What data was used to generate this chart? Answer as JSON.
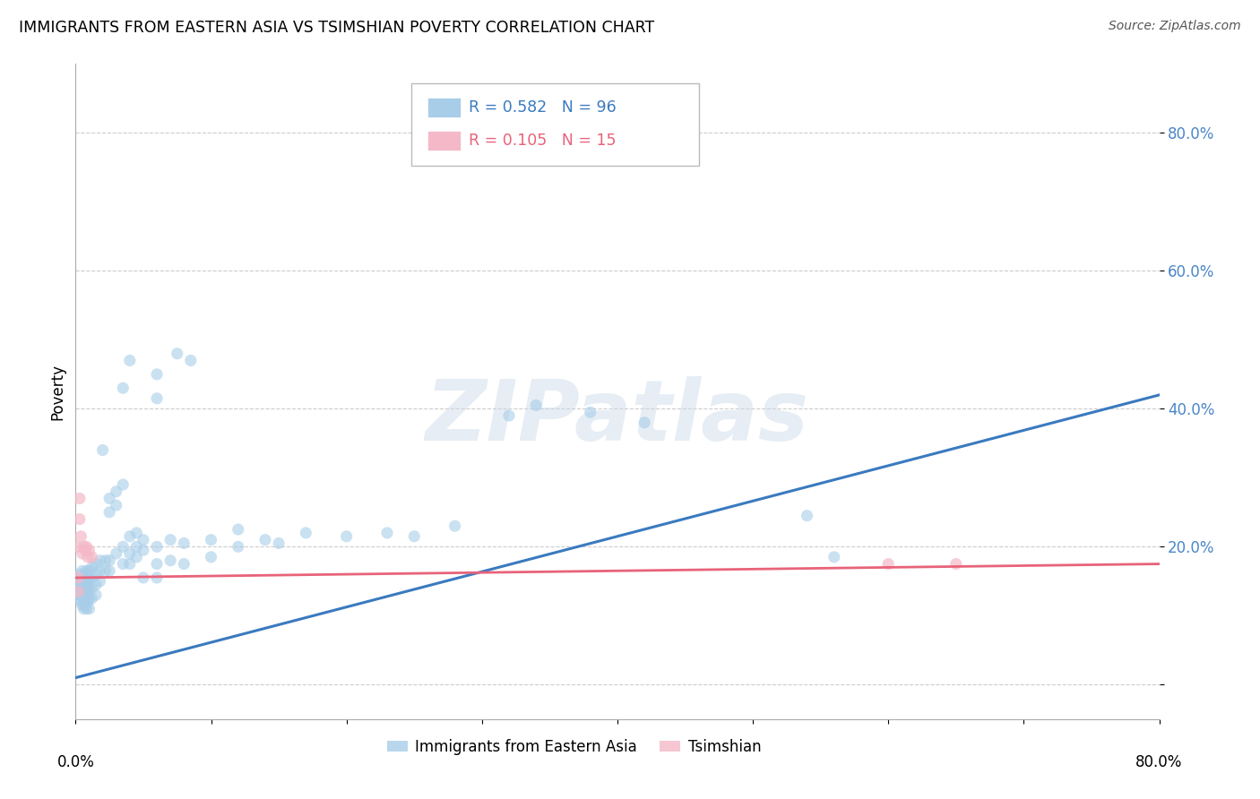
{
  "title": "IMMIGRANTS FROM EASTERN ASIA VS TSIMSHIAN POVERTY CORRELATION CHART",
  "source": "Source: ZipAtlas.com",
  "ylabel": "Poverty",
  "blue_color": "#a8cde8",
  "pink_color": "#f4b8c8",
  "blue_line_color": "#3a7abf",
  "pink_line_color": "#e8637a",
  "watermark": "ZIPatlas",
  "xlim": [
    0.0,
    0.8
  ],
  "ylim": [
    -0.05,
    0.9
  ],
  "blue_scatter": [
    [
      0.001,
      0.155
    ],
    [
      0.002,
      0.145
    ],
    [
      0.002,
      0.135
    ],
    [
      0.003,
      0.16
    ],
    [
      0.003,
      0.14
    ],
    [
      0.003,
      0.125
    ],
    [
      0.004,
      0.155
    ],
    [
      0.004,
      0.145
    ],
    [
      0.004,
      0.13
    ],
    [
      0.004,
      0.12
    ],
    [
      0.005,
      0.165
    ],
    [
      0.005,
      0.15
    ],
    [
      0.005,
      0.14
    ],
    [
      0.005,
      0.13
    ],
    [
      0.005,
      0.115
    ],
    [
      0.006,
      0.155
    ],
    [
      0.006,
      0.145
    ],
    [
      0.006,
      0.135
    ],
    [
      0.006,
      0.125
    ],
    [
      0.006,
      0.11
    ],
    [
      0.007,
      0.16
    ],
    [
      0.007,
      0.15
    ],
    [
      0.007,
      0.14
    ],
    [
      0.007,
      0.13
    ],
    [
      0.007,
      0.115
    ],
    [
      0.008,
      0.165
    ],
    [
      0.008,
      0.155
    ],
    [
      0.008,
      0.14
    ],
    [
      0.008,
      0.125
    ],
    [
      0.008,
      0.11
    ],
    [
      0.009,
      0.16
    ],
    [
      0.009,
      0.15
    ],
    [
      0.009,
      0.135
    ],
    [
      0.009,
      0.12
    ],
    [
      0.01,
      0.165
    ],
    [
      0.01,
      0.155
    ],
    [
      0.01,
      0.14
    ],
    [
      0.01,
      0.125
    ],
    [
      0.01,
      0.11
    ],
    [
      0.012,
      0.17
    ],
    [
      0.012,
      0.155
    ],
    [
      0.012,
      0.14
    ],
    [
      0.012,
      0.125
    ],
    [
      0.015,
      0.175
    ],
    [
      0.015,
      0.16
    ],
    [
      0.015,
      0.145
    ],
    [
      0.015,
      0.13
    ],
    [
      0.018,
      0.18
    ],
    [
      0.018,
      0.165
    ],
    [
      0.018,
      0.15
    ],
    [
      0.02,
      0.34
    ],
    [
      0.022,
      0.18
    ],
    [
      0.022,
      0.165
    ],
    [
      0.025,
      0.27
    ],
    [
      0.025,
      0.25
    ],
    [
      0.025,
      0.18
    ],
    [
      0.025,
      0.165
    ],
    [
      0.03,
      0.28
    ],
    [
      0.03,
      0.26
    ],
    [
      0.03,
      0.19
    ],
    [
      0.035,
      0.29
    ],
    [
      0.035,
      0.2
    ],
    [
      0.035,
      0.175
    ],
    [
      0.04,
      0.215
    ],
    [
      0.04,
      0.19
    ],
    [
      0.04,
      0.175
    ],
    [
      0.045,
      0.22
    ],
    [
      0.045,
      0.2
    ],
    [
      0.045,
      0.185
    ],
    [
      0.05,
      0.21
    ],
    [
      0.05,
      0.195
    ],
    [
      0.05,
      0.155
    ],
    [
      0.06,
      0.2
    ],
    [
      0.06,
      0.175
    ],
    [
      0.06,
      0.155
    ],
    [
      0.07,
      0.21
    ],
    [
      0.07,
      0.18
    ],
    [
      0.08,
      0.205
    ],
    [
      0.08,
      0.175
    ],
    [
      0.1,
      0.21
    ],
    [
      0.1,
      0.185
    ],
    [
      0.12,
      0.225
    ],
    [
      0.12,
      0.2
    ],
    [
      0.14,
      0.21
    ],
    [
      0.15,
      0.205
    ],
    [
      0.17,
      0.22
    ],
    [
      0.2,
      0.215
    ],
    [
      0.23,
      0.22
    ],
    [
      0.25,
      0.215
    ],
    [
      0.28,
      0.23
    ],
    [
      0.035,
      0.43
    ],
    [
      0.04,
      0.47
    ],
    [
      0.06,
      0.415
    ],
    [
      0.06,
      0.45
    ],
    [
      0.075,
      0.48
    ],
    [
      0.085,
      0.47
    ],
    [
      0.32,
      0.39
    ],
    [
      0.34,
      0.405
    ],
    [
      0.38,
      0.395
    ],
    [
      0.42,
      0.38
    ],
    [
      0.54,
      0.245
    ],
    [
      0.56,
      0.185
    ]
  ],
  "pink_scatter": [
    [
      0.001,
      0.2
    ],
    [
      0.002,
      0.155
    ],
    [
      0.002,
      0.135
    ],
    [
      0.003,
      0.27
    ],
    [
      0.003,
      0.24
    ],
    [
      0.004,
      0.215
    ],
    [
      0.005,
      0.19
    ],
    [
      0.006,
      0.2
    ],
    [
      0.007,
      0.195
    ],
    [
      0.008,
      0.2
    ],
    [
      0.009,
      0.185
    ],
    [
      0.01,
      0.195
    ],
    [
      0.012,
      0.185
    ],
    [
      0.6,
      0.175
    ],
    [
      0.65,
      0.175
    ]
  ],
  "blue_regline": [
    0.0,
    0.8,
    0.01,
    0.42
  ],
  "pink_regline": [
    0.0,
    0.8,
    0.155,
    0.175
  ],
  "yticks": [
    0.0,
    0.2,
    0.4,
    0.6,
    0.8
  ],
  "ytick_labels": [
    "",
    "20.0%",
    "40.0%",
    "60.0%",
    "80.0%"
  ]
}
